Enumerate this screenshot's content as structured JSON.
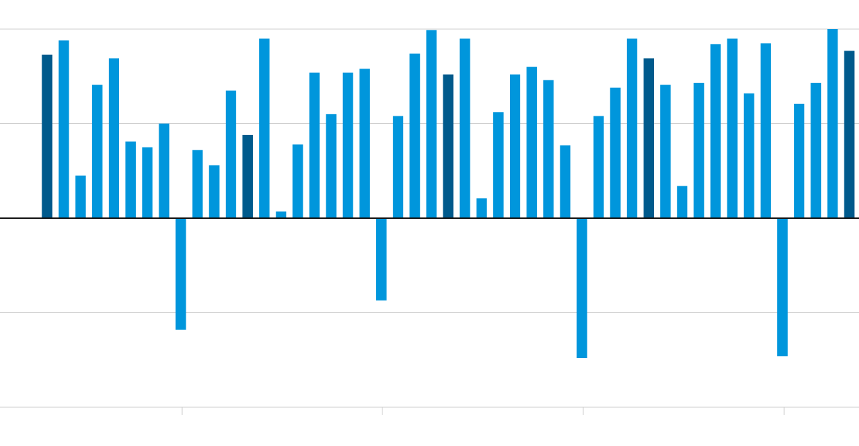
{
  "chart_data": {
    "type": "bar",
    "values": [
      1.73,
      1.88,
      0.45,
      1.41,
      1.69,
      0.81,
      0.75,
      1.0,
      -1.18,
      0.72,
      0.56,
      1.35,
      0.88,
      1.9,
      0.07,
      0.78,
      1.54,
      1.1,
      1.54,
      1.58,
      -0.87,
      1.08,
      1.74,
      1.99,
      1.52,
      1.9,
      0.21,
      1.12,
      1.52,
      1.6,
      1.46,
      0.77,
      -1.48,
      1.08,
      1.38,
      1.9,
      1.69,
      1.41,
      0.34,
      1.43,
      1.84,
      1.9,
      1.32,
      1.85,
      -1.46,
      1.21,
      1.43,
      2.0,
      1.77
    ],
    "colors": [
      "#005a8c",
      "#0096dc",
      "#0096dc",
      "#0096dc",
      "#0096dc",
      "#0096dc",
      "#0096dc",
      "#0096dc",
      "#0096dc",
      "#0096dc",
      "#0096dc",
      "#0096dc",
      "#005a8c",
      "#0096dc",
      "#0096dc",
      "#0096dc",
      "#0096dc",
      "#0096dc",
      "#0096dc",
      "#0096dc",
      "#0096dc",
      "#0096dc",
      "#0096dc",
      "#0096dc",
      "#005a8c",
      "#0096dc",
      "#0096dc",
      "#0096dc",
      "#0096dc",
      "#0096dc",
      "#0096dc",
      "#0096dc",
      "#0096dc",
      "#0096dc",
      "#0096dc",
      "#0096dc",
      "#005a8c",
      "#0096dc",
      "#0096dc",
      "#0096dc",
      "#0096dc",
      "#0096dc",
      "#0096dc",
      "#0096dc",
      "#0096dc",
      "#0096dc",
      "#0096dc",
      "#0096dc",
      "#005a8c"
    ],
    "ylim": [
      -2,
      2
    ],
    "yticks": [
      -2,
      -1,
      0,
      1,
      2
    ],
    "grid": true
  }
}
